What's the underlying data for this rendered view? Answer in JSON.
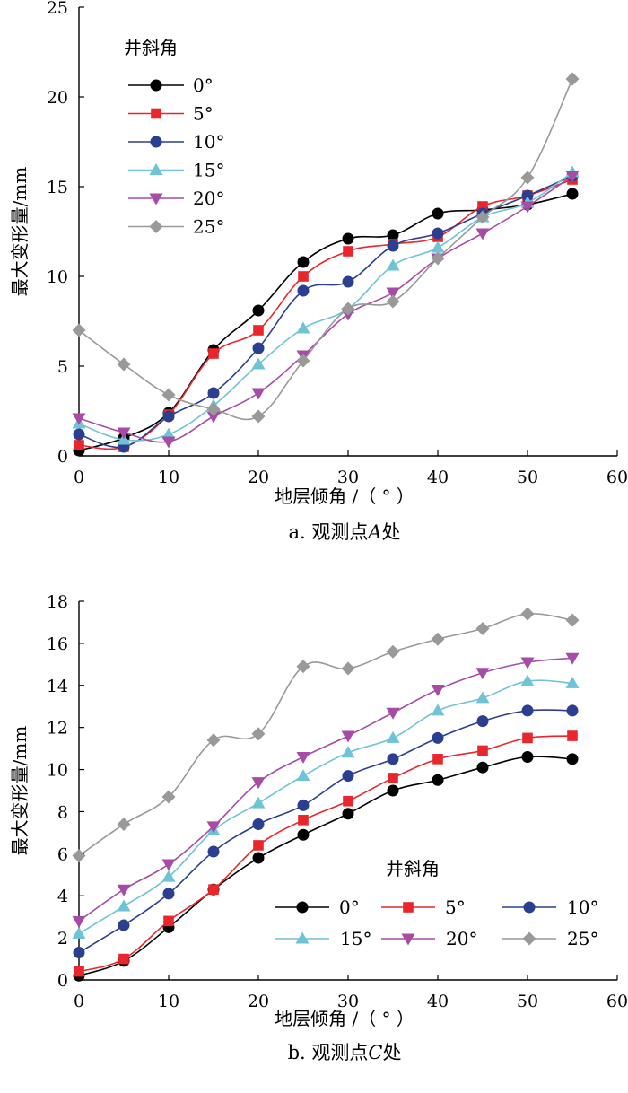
{
  "chart_data": [
    {
      "type": "line",
      "caption": "a. 观测点A处",
      "caption_prefix": "a. 观测点",
      "caption_point": "A",
      "caption_suffix": "处",
      "xlabel": "地层倾角 /（ ° ）",
      "ylabel": "最大变形量/mm",
      "xlim": [
        0,
        60
      ],
      "ylim": [
        0,
        25
      ],
      "xticks": [
        0,
        10,
        20,
        30,
        40,
        50,
        60
      ],
      "yticks": [
        0,
        5,
        10,
        15,
        20,
        25
      ],
      "legend_title": "井斜角",
      "legend_position": "top-left",
      "x": [
        0,
        5,
        10,
        15,
        20,
        25,
        30,
        35,
        40,
        45,
        50,
        55
      ],
      "series": [
        {
          "name": "0°",
          "color": "#000000",
          "marker": "circle",
          "values": [
            0.3,
            1.0,
            2.4,
            5.9,
            8.1,
            10.8,
            12.1,
            12.3,
            13.5,
            13.7,
            14.0,
            14.6
          ]
        },
        {
          "name": "5°",
          "color": "#e8262b",
          "marker": "square",
          "values": [
            0.6,
            0.5,
            2.3,
            5.7,
            7.0,
            10.0,
            11.4,
            11.8,
            12.2,
            13.9,
            14.5,
            15.4
          ]
        },
        {
          "name": "10°",
          "color": "#2c3e8f",
          "marker": "circle",
          "values": [
            1.2,
            0.5,
            2.2,
            3.5,
            6.0,
            9.2,
            9.7,
            11.7,
            12.4,
            13.5,
            14.5,
            15.6
          ]
        },
        {
          "name": "15°",
          "color": "#6ec3d4",
          "marker": "triangle-up",
          "values": [
            1.8,
            0.9,
            1.2,
            2.8,
            5.1,
            7.1,
            8.2,
            10.6,
            11.6,
            13.3,
            14.1,
            15.8
          ]
        },
        {
          "name": "20°",
          "color": "#a64ca6",
          "marker": "triangle-down",
          "values": [
            2.1,
            1.3,
            0.8,
            2.2,
            3.5,
            5.6,
            7.9,
            9.1,
            11.0,
            12.4,
            13.9,
            15.6
          ]
        },
        {
          "name": "25°",
          "color": "#999999",
          "marker": "diamond",
          "values": [
            7.0,
            5.1,
            3.4,
            2.6,
            2.2,
            5.3,
            8.2,
            8.6,
            11.0,
            13.3,
            15.5,
            21.0
          ]
        }
      ]
    },
    {
      "type": "line",
      "caption": "b. 观测点C处",
      "caption_prefix": "b. 观测点",
      "caption_point": "C",
      "caption_suffix": "处",
      "xlabel": "地层倾角 /（ ° ）",
      "ylabel": "最大变形量/mm",
      "xlim": [
        0,
        60
      ],
      "ylim": [
        0,
        18
      ],
      "xticks": [
        0,
        10,
        20,
        30,
        40,
        50,
        60
      ],
      "yticks": [
        0,
        2,
        4,
        6,
        8,
        10,
        12,
        14,
        16,
        18
      ],
      "legend_title": "井斜角",
      "legend_position": "bottom-right",
      "x": [
        0,
        5,
        10,
        15,
        20,
        25,
        30,
        35,
        40,
        45,
        50,
        55
      ],
      "series": [
        {
          "name": "0°",
          "color": "#000000",
          "marker": "circle",
          "values": [
            0.2,
            0.9,
            2.5,
            4.3,
            5.8,
            6.9,
            7.9,
            9.0,
            9.5,
            10.1,
            10.6,
            10.5
          ]
        },
        {
          "name": "5°",
          "color": "#e8262b",
          "marker": "square",
          "values": [
            0.4,
            1.0,
            2.8,
            4.3,
            6.4,
            7.6,
            8.5,
            9.6,
            10.5,
            10.9,
            11.5,
            11.6
          ]
        },
        {
          "name": "10°",
          "color": "#2c3e8f",
          "marker": "circle",
          "values": [
            1.3,
            2.6,
            4.1,
            6.1,
            7.4,
            8.3,
            9.7,
            10.5,
            11.5,
            12.3,
            12.8,
            12.8
          ]
        },
        {
          "name": "15°",
          "color": "#6ec3d4",
          "marker": "triangle-up",
          "values": [
            2.2,
            3.5,
            4.9,
            7.1,
            8.4,
            9.7,
            10.8,
            11.5,
            12.8,
            13.4,
            14.2,
            14.1
          ]
        },
        {
          "name": "20°",
          "color": "#a64ca6",
          "marker": "triangle-down",
          "values": [
            2.8,
            4.3,
            5.5,
            7.3,
            9.4,
            10.6,
            11.6,
            12.7,
            13.8,
            14.6,
            15.1,
            15.3
          ]
        },
        {
          "name": "25°",
          "color": "#999999",
          "marker": "diamond",
          "values": [
            5.9,
            7.4,
            8.7,
            11.4,
            11.7,
            14.9,
            14.8,
            15.6,
            16.2,
            16.7,
            17.4,
            17.1
          ]
        }
      ]
    }
  ]
}
